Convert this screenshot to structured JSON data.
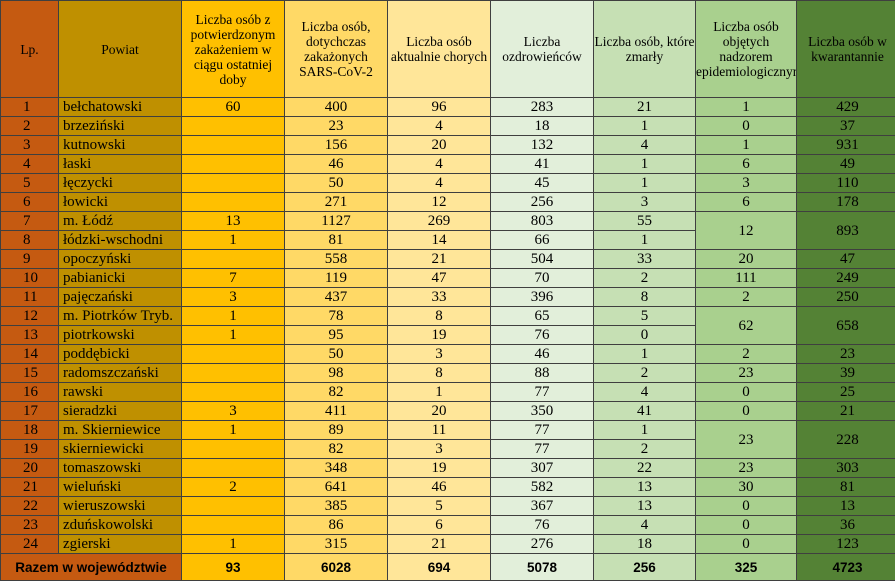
{
  "header": {
    "lp": "Lp.",
    "powiat": "Powiat",
    "new": "Liczba osób z potwierdzonym zakażeniem w ciągu ostatniej doby",
    "total": "Liczba osób, dotychczas zakażonych SARS-CoV-2",
    "active": "Liczba osób aktualnie chorych",
    "recovered": "Liczba ozdrowieńców",
    "deaths": "Liczba osób, które zmarły",
    "supervision": "Liczba osób objętych nadzorem epidemiologicznym",
    "quarantine": "Liczba osób w kwarantannie"
  },
  "rows": [
    {
      "lp": "1",
      "name": "bełchatowski",
      "new": "60",
      "total": "400",
      "active": "96",
      "recovered": "283",
      "deaths": "21",
      "supervision": "1",
      "quarantine": "429"
    },
    {
      "lp": "2",
      "name": "brzeziński",
      "new": "",
      "total": "23",
      "active": "4",
      "recovered": "18",
      "deaths": "1",
      "supervision": "0",
      "quarantine": "37"
    },
    {
      "lp": "3",
      "name": "kutnowski",
      "new": "",
      "total": "156",
      "active": "20",
      "recovered": "132",
      "deaths": "4",
      "supervision": "1",
      "quarantine": "931"
    },
    {
      "lp": "4",
      "name": "łaski",
      "new": "",
      "total": "46",
      "active": "4",
      "recovered": "41",
      "deaths": "1",
      "supervision": "6",
      "quarantine": "49"
    },
    {
      "lp": "5",
      "name": "łęczycki",
      "new": "",
      "total": "50",
      "active": "4",
      "recovered": "45",
      "deaths": "1",
      "supervision": "3",
      "quarantine": "110"
    },
    {
      "lp": "6",
      "name": "łowicki",
      "new": "",
      "total": "271",
      "active": "12",
      "recovered": "256",
      "deaths": "3",
      "supervision": "6",
      "quarantine": "178"
    },
    {
      "lp": "7",
      "name": "m. Łódź",
      "new": "13",
      "total": "1127",
      "active": "269",
      "recovered": "803",
      "deaths": "55",
      "supervision": "12",
      "quarantine": "893"
    },
    {
      "lp": "8",
      "name": "łódzki-wschodni",
      "new": "1",
      "total": "81",
      "active": "14",
      "recovered": "66",
      "deaths": "1"
    },
    {
      "lp": "9",
      "name": "opoczyński",
      "new": "",
      "total": "558",
      "active": "21",
      "recovered": "504",
      "deaths": "33",
      "supervision": "20",
      "quarantine": "47"
    },
    {
      "lp": "10",
      "name": "pabianicki",
      "new": "7",
      "total": "119",
      "active": "47",
      "recovered": "70",
      "deaths": "2",
      "supervision": "111",
      "quarantine": "249"
    },
    {
      "lp": "11",
      "name": "pajęczański",
      "new": "3",
      "total": "437",
      "active": "33",
      "recovered": "396",
      "deaths": "8",
      "supervision": "2",
      "quarantine": "250"
    },
    {
      "lp": "12",
      "name": "m. Piotrków Tryb.",
      "new": "1",
      "total": "78",
      "active": "8",
      "recovered": "65",
      "deaths": "5",
      "supervision": "62",
      "quarantine": "658"
    },
    {
      "lp": "13",
      "name": "piotrkowski",
      "new": "1",
      "total": "95",
      "active": "19",
      "recovered": "76",
      "deaths": "0"
    },
    {
      "lp": "14",
      "name": "poddębicki",
      "new": "",
      "total": "50",
      "active": "3",
      "recovered": "46",
      "deaths": "1",
      "supervision": "2",
      "quarantine": "23"
    },
    {
      "lp": "15",
      "name": "radomszczański",
      "new": "",
      "total": "98",
      "active": "8",
      "recovered": "88",
      "deaths": "2",
      "supervision": "23",
      "quarantine": "39"
    },
    {
      "lp": "16",
      "name": "rawski",
      "new": "",
      "total": "82",
      "active": "1",
      "recovered": "77",
      "deaths": "4",
      "supervision": "0",
      "quarantine": "25"
    },
    {
      "lp": "17",
      "name": "sieradzki",
      "new": "3",
      "total": "411",
      "active": "20",
      "recovered": "350",
      "deaths": "41",
      "supervision": "0",
      "quarantine": "21"
    },
    {
      "lp": "18",
      "name": "m. Skierniewice",
      "new": "1",
      "total": "89",
      "active": "11",
      "recovered": "77",
      "deaths": "1",
      "supervision": "23",
      "quarantine": "228"
    },
    {
      "lp": "19",
      "name": "skierniewicki",
      "new": "",
      "total": "82",
      "active": "3",
      "recovered": "77",
      "deaths": "2"
    },
    {
      "lp": "20",
      "name": "tomaszowski",
      "new": "",
      "total": "348",
      "active": "19",
      "recovered": "307",
      "deaths": "22",
      "supervision": "23",
      "quarantine": "303"
    },
    {
      "lp": "21",
      "name": "wieluński",
      "new": "2",
      "total": "641",
      "active": "46",
      "recovered": "582",
      "deaths": "13",
      "supervision": "30",
      "quarantine": "81"
    },
    {
      "lp": "22",
      "name": "wieruszowski",
      "new": "",
      "total": "385",
      "active": "5",
      "recovered": "367",
      "deaths": "13",
      "supervision": "0",
      "quarantine": "13"
    },
    {
      "lp": "23",
      "name": "zduńskowolski",
      "new": "",
      "total": "86",
      "active": "6",
      "recovered": "76",
      "deaths": "4",
      "supervision": "0",
      "quarantine": "36"
    },
    {
      "lp": "24",
      "name": "zgierski",
      "new": "1",
      "total": "315",
      "active": "21",
      "recovered": "276",
      "deaths": "18",
      "supervision": "0",
      "quarantine": "123"
    }
  ],
  "footer": {
    "label": "Razem w województwie",
    "new": "93",
    "total": "6028",
    "active": "694",
    "recovered": "5078",
    "deaths": "256",
    "supervision": "325",
    "quarantine": "4723"
  },
  "colors": {
    "lp": "#c55a11",
    "powiat": "#bf9000",
    "new": "#ffc000",
    "total": "#ffd966",
    "active": "#ffe699",
    "recovered": "#e2efda",
    "deaths": "#c6e0b4",
    "supervision": "#a9d08e",
    "quarantine": "#548235"
  }
}
